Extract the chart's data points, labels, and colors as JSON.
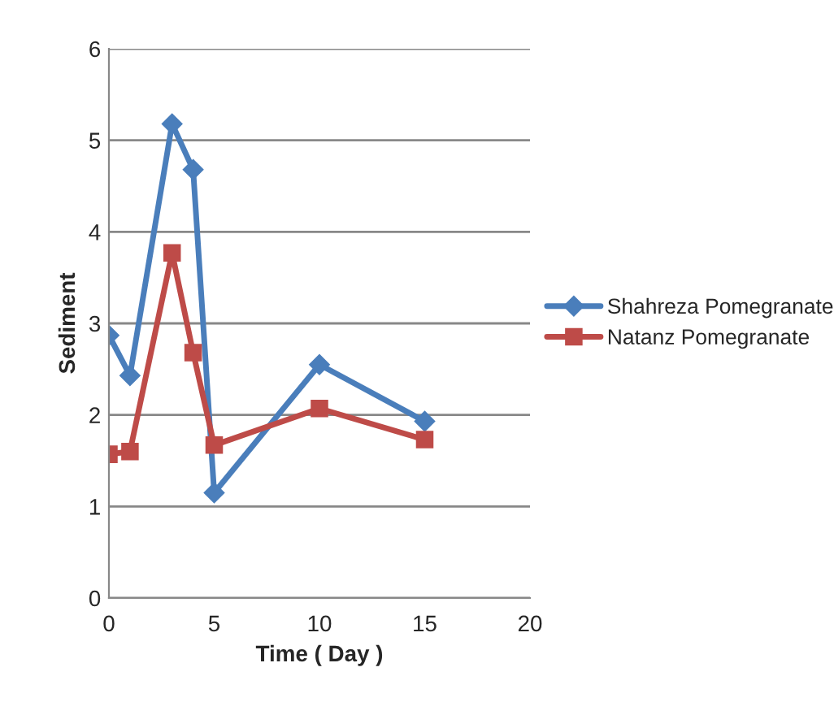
{
  "chart_data": {
    "type": "line",
    "xlabel": "Time ( Day )",
    "ylabel": "Sediment",
    "x": [
      0,
      1,
      3,
      4,
      5,
      10,
      15
    ],
    "series": [
      {
        "name": "Shahreza Pomegranate",
        "color": "#4a7ebb",
        "marker": "diamond",
        "values": [
          2.87,
          2.43,
          5.18,
          4.68,
          1.15,
          2.55,
          1.93
        ]
      },
      {
        "name": "Natanz Pomegranate",
        "color": "#be4b48",
        "marker": "square",
        "values": [
          1.57,
          1.6,
          3.77,
          2.68,
          1.67,
          2.07,
          1.73
        ]
      }
    ],
    "xlim": [
      0,
      20
    ],
    "xticks": [
      0,
      5,
      10,
      15,
      20
    ],
    "ylim": [
      0,
      6
    ],
    "yticks": [
      0,
      1,
      2,
      3,
      4,
      5,
      6
    ],
    "grid": "y",
    "legend": "right",
    "line_style": "solid"
  }
}
